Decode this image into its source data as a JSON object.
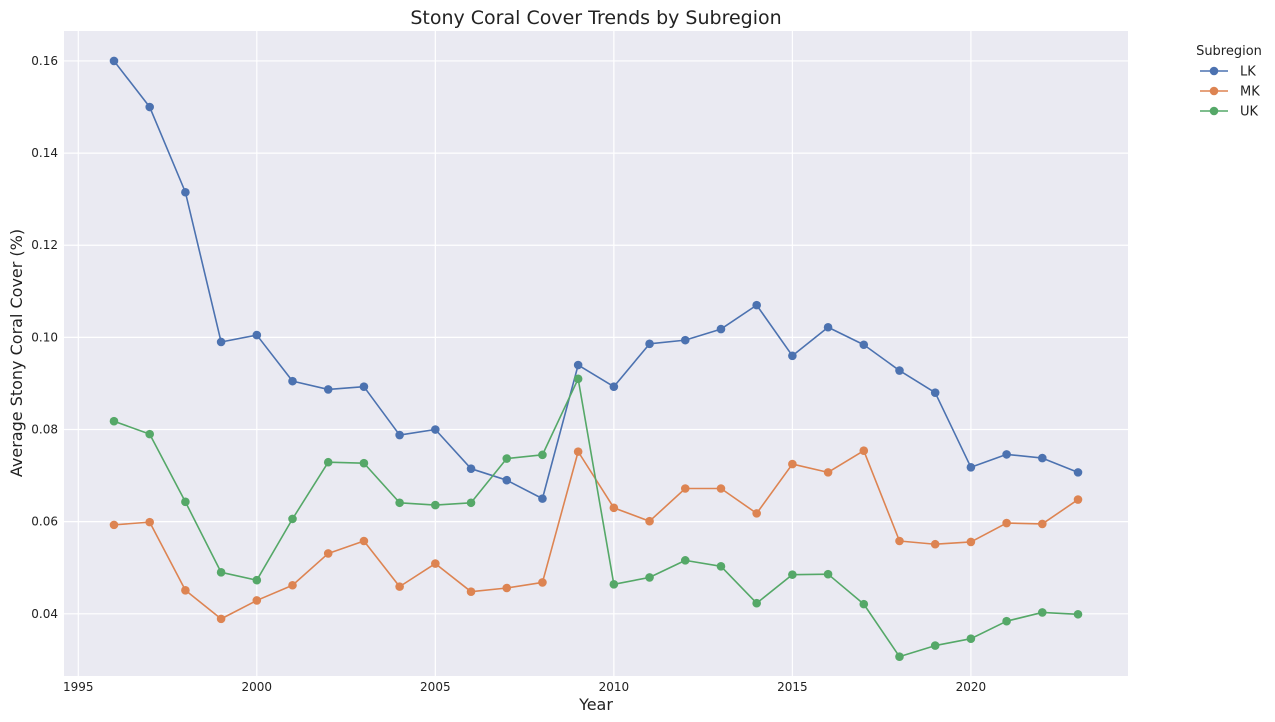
{
  "chart_data": {
    "type": "line",
    "title": "Stony Coral Cover Trends by Subregion",
    "xlabel": "Year",
    "ylabel": "Average Stony Coral Cover (%)",
    "xlim": [
      1994.6,
      2024.4
    ],
    "ylim": [
      0.0265,
      0.1665
    ],
    "x_ticks": [
      1995,
      2000,
      2005,
      2010,
      2015,
      2020
    ],
    "y_ticks": [
      0.04,
      0.06,
      0.08,
      0.1,
      0.12,
      0.14,
      0.16
    ],
    "y_tick_labels": [
      "0.04",
      "0.06",
      "0.08",
      "0.10",
      "0.12",
      "0.14",
      "0.16"
    ],
    "grid": true,
    "legend": {
      "title": "Subregion",
      "placement": "outside-top-right"
    },
    "x": [
      1996,
      1997,
      1998,
      1999,
      2000,
      2001,
      2002,
      2003,
      2004,
      2005,
      2006,
      2007,
      2008,
      2009,
      2010,
      2011,
      2012,
      2013,
      2014,
      2015,
      2016,
      2017,
      2018,
      2019,
      2020,
      2021,
      2022,
      2023
    ],
    "series": [
      {
        "name": "LK",
        "color": "#4c72b0",
        "values": [
          0.16,
          0.15,
          0.1315,
          0.099,
          0.1005,
          0.0905,
          0.0887,
          0.0893,
          0.0788,
          0.08,
          0.0715,
          0.069,
          0.065,
          0.094,
          0.0893,
          0.0986,
          0.0994,
          0.1018,
          0.107,
          0.096,
          0.1022,
          0.0984,
          0.0928,
          0.088,
          0.0718,
          0.0746,
          0.0738,
          0.0707
        ]
      },
      {
        "name": "MK",
        "color": "#dd8452",
        "values": [
          0.0593,
          0.0599,
          0.0451,
          0.0389,
          0.0429,
          0.0462,
          0.0531,
          0.0558,
          0.0459,
          0.0509,
          0.0448,
          0.0456,
          0.0468,
          0.0752,
          0.063,
          0.0601,
          0.0672,
          0.0672,
          0.0618,
          0.0725,
          0.0707,
          0.0754,
          0.0558,
          0.0551,
          0.0556,
          0.0597,
          0.0595,
          0.0648
        ]
      },
      {
        "name": "UK",
        "color": "#55a868",
        "values": [
          0.0818,
          0.079,
          0.0643,
          0.049,
          0.0473,
          0.0606,
          0.0729,
          0.0727,
          0.0641,
          0.0636,
          0.0641,
          0.0737,
          0.0745,
          0.091,
          0.0464,
          0.0479,
          0.0516,
          0.0503,
          0.0423,
          0.0485,
          0.0486,
          0.0421,
          0.0307,
          0.0331,
          0.0346,
          0.0384,
          0.0403,
          0.0399
        ]
      }
    ]
  }
}
